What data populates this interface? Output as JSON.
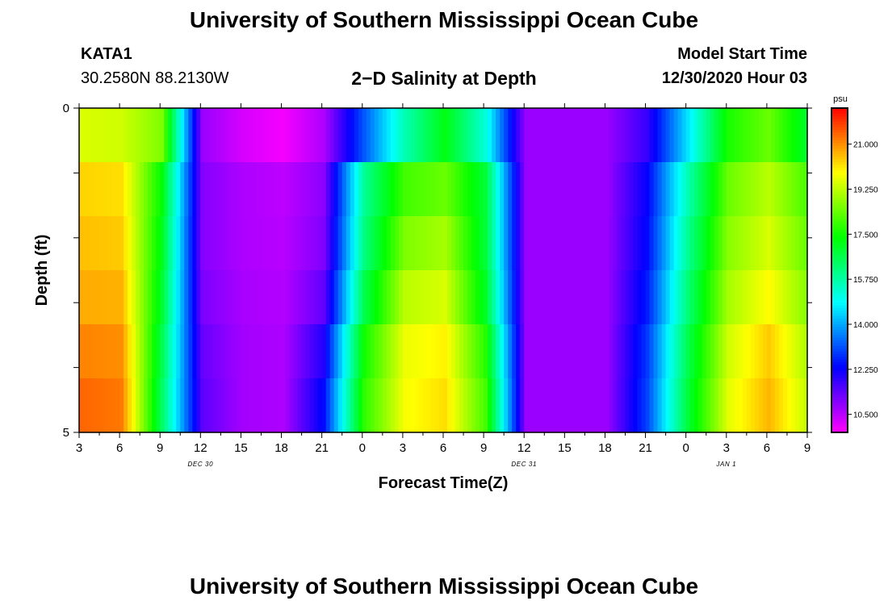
{
  "header": {
    "title": "University of Southern Mississippi Ocean Cube",
    "station": "KATA1",
    "coords": "30.2580N 88.2130W",
    "plot_title": "2−D Salinity at Depth",
    "model_label": "Model Start Time",
    "model_time": "12/30/2020 Hour 03"
  },
  "footer": {
    "title": "University of Southern Mississippi Ocean Cube"
  },
  "chart_data": {
    "type": "heatmap",
    "title": "2−D Salinity at Depth",
    "xlabel": "Forecast Time(Z)",
    "ylabel": "Depth (ft)",
    "x_ticks": [
      "3",
      "6",
      "9",
      "12",
      "15",
      "18",
      "21",
      "0",
      "3",
      "6",
      "9",
      "12",
      "15",
      "18",
      "21",
      "0",
      "3",
      "6",
      "9"
    ],
    "date_labels": [
      {
        "label": "DEC 30",
        "at_tick": 3
      },
      {
        "label": "DEC 31",
        "at_tick": 11
      },
      {
        "label": "JAN 1",
        "at_tick": 16
      }
    ],
    "y_ticks": [
      "0",
      "5"
    ],
    "ylim": [
      0,
      5
    ],
    "colorbar": {
      "unit": "psu",
      "ticks": [
        "21.000",
        "19.250",
        "17.500",
        "15.750",
        "14.000",
        "12.250",
        "10.500"
      ],
      "range": [
        9.8,
        22.4
      ]
    },
    "x_hours": [
      3,
      6,
      9,
      12,
      15,
      18,
      21,
      24,
      27,
      30,
      33,
      36,
      39,
      42,
      45,
      48,
      51,
      54,
      57
    ],
    "depth_rows": [
      0,
      1,
      2,
      3,
      4,
      5
    ],
    "values": [
      [
        19.5,
        19.4,
        18.6,
        10.8,
        10.2,
        9.9,
        10.6,
        13.2,
        15.6,
        17.2,
        15.2,
        10.8,
        10.8,
        10.8,
        11.8,
        14.6,
        17.6,
        18.4,
        16.8
      ],
      [
        20.2,
        20.1,
        17.4,
        11.0,
        10.6,
        10.4,
        10.9,
        15.6,
        17.6,
        18.0,
        16.6,
        10.8,
        10.8,
        10.8,
        12.2,
        15.4,
        18.2,
        19.0,
        17.8
      ],
      [
        20.4,
        20.3,
        17.2,
        11.0,
        10.6,
        10.5,
        11.0,
        16.2,
        18.4,
        18.8,
        17.0,
        10.8,
        10.8,
        10.8,
        12.4,
        15.8,
        18.6,
        19.4,
        18.2
      ],
      [
        20.6,
        20.5,
        17.0,
        11.0,
        10.6,
        10.5,
        11.1,
        16.0,
        18.8,
        19.2,
        16.6,
        10.8,
        10.8,
        10.8,
        12.4,
        16.0,
        18.8,
        19.6,
        18.4
      ],
      [
        20.8,
        20.8,
        16.8,
        11.2,
        10.7,
        10.6,
        11.6,
        17.2,
        19.6,
        19.8,
        17.4,
        10.8,
        10.8,
        10.8,
        12.8,
        16.4,
        19.2,
        20.2,
        18.8
      ],
      [
        21.4,
        21.2,
        16.4,
        11.4,
        10.7,
        10.6,
        12.4,
        17.8,
        19.8,
        20.2,
        18.0,
        10.8,
        10.8,
        10.8,
        13.0,
        16.8,
        19.6,
        20.6,
        19.2
      ]
    ]
  }
}
